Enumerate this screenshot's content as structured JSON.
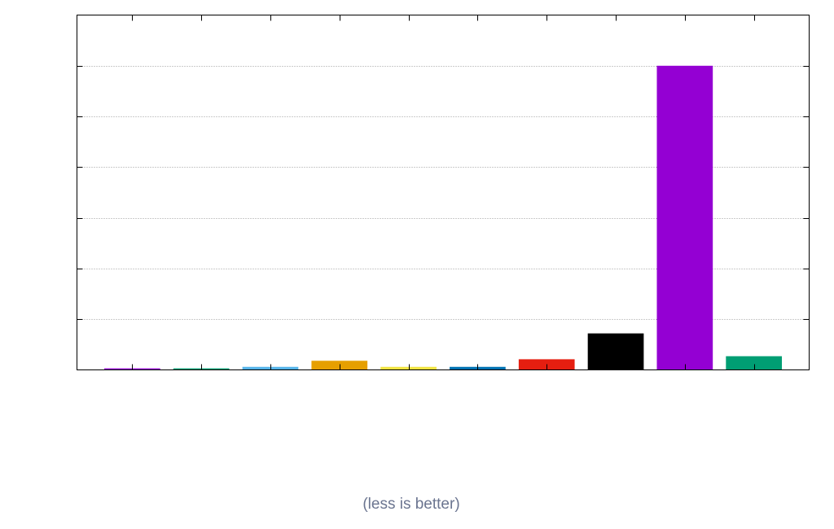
{
  "chart_data": {
    "type": "bar",
    "title": "",
    "xlabel": "(less is better)",
    "ylabel": "",
    "categories": [
      "",
      "",
      "",
      "",
      "",
      "",
      "",
      "",
      "",
      ""
    ],
    "values": [
      0.5,
      0.5,
      1,
      3,
      1,
      1,
      3.5,
      12,
      100,
      4.5
    ],
    "colors": [
      "#9400d3",
      "#009e73",
      "#56b4e9",
      "#e69f00",
      "#f0e442",
      "#0072b2",
      "#e51e10",
      "#000000",
      "#9400d3",
      "#009e73"
    ],
    "ylim": [
      0,
      116.67
    ],
    "yticks": [
      0,
      16.67,
      33.33,
      50,
      66.67,
      83.33,
      100,
      116.67
    ],
    "grid": true,
    "legend": "none"
  }
}
